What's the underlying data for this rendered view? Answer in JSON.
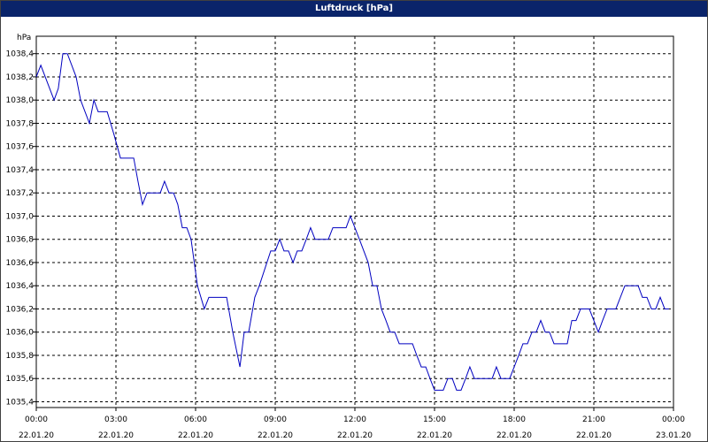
{
  "chart_data": {
    "type": "line",
    "title": "Luftdruck [hPa]",
    "y_label": "hPa",
    "xlim": [
      0,
      24
    ],
    "ylim": [
      1035.35,
      1038.55
    ],
    "xticks": [
      {
        "value": 0,
        "label": "00:00",
        "date": "22.01.20"
      },
      {
        "value": 3,
        "label": "03:00",
        "date": "22.01.20"
      },
      {
        "value": 6,
        "label": "06:00",
        "date": "22.01.20"
      },
      {
        "value": 9,
        "label": "09:00",
        "date": "22.01.20"
      },
      {
        "value": 12,
        "label": "12:00",
        "date": "22.01.20"
      },
      {
        "value": 15,
        "label": "15:00",
        "date": "22.01.20"
      },
      {
        "value": 18,
        "label": "18:00",
        "date": "22.01.20"
      },
      {
        "value": 21,
        "label": "21:00",
        "date": "22.01.20"
      },
      {
        "value": 24,
        "label": "00:00",
        "date": "23.01.20"
      }
    ],
    "yticks": [
      {
        "value": 1035.4,
        "label": "1035,4"
      },
      {
        "value": 1035.6,
        "label": "1035,6"
      },
      {
        "value": 1035.8,
        "label": "1035,8"
      },
      {
        "value": 1036.0,
        "label": "1036,0"
      },
      {
        "value": 1036.2,
        "label": "1036,2"
      },
      {
        "value": 1036.4,
        "label": "1036,4"
      },
      {
        "value": 1036.6,
        "label": "1036,6"
      },
      {
        "value": 1036.8,
        "label": "1036,8"
      },
      {
        "value": 1037.0,
        "label": "1037,0"
      },
      {
        "value": 1037.2,
        "label": "1037,2"
      },
      {
        "value": 1037.4,
        "label": "1037,4"
      },
      {
        "value": 1037.6,
        "label": "1037,6"
      },
      {
        "value": 1037.8,
        "label": "1037,8"
      },
      {
        "value": 1038.0,
        "label": "1038,0"
      },
      {
        "value": 1038.2,
        "label": "1038,2"
      },
      {
        "value": 1038.4,
        "label": "1038,4"
      }
    ],
    "grid": true,
    "series": [
      {
        "name": "Luftdruck",
        "color": "#0000c0",
        "x": [
          0,
          0.17,
          0.67,
          0.83,
          1,
          1.17,
          1.5,
          1.67,
          2,
          2.17,
          2.33,
          2.67,
          2.93,
          3.17,
          3.67,
          3.83,
          4,
          4.17,
          4.67,
          4.83,
          5,
          5.17,
          5.33,
          5.5,
          5.67,
          5.83,
          6.07,
          6.33,
          6.5,
          7.17,
          7.4,
          7.67,
          7.83,
          8,
          8.23,
          8.4,
          8.83,
          9,
          9.17,
          9.33,
          9.5,
          9.67,
          9.83,
          10,
          10.17,
          10.33,
          10.5,
          11,
          11.17,
          11.67,
          11.83,
          12,
          12.17,
          12.5,
          12.67,
          12.83,
          13,
          13.17,
          13.33,
          13.5,
          13.67,
          14.17,
          14.33,
          14.5,
          14.67,
          14.83,
          15,
          15.33,
          15.5,
          15.67,
          15.83,
          16,
          16.17,
          16.33,
          16.5,
          17.17,
          17.33,
          17.5,
          17.83,
          18,
          18.17,
          18.33,
          18.5,
          18.67,
          18.83,
          19,
          19.17,
          19.33,
          19.5,
          20,
          20.17,
          20.33,
          20.5,
          20.83,
          21,
          21.17,
          21.33,
          21.5,
          21.83,
          22,
          22.17,
          22.67,
          22.83,
          23,
          23.17,
          23.33,
          23.5,
          23.67,
          23.83
        ],
        "values": [
          1038.2,
          1038.3,
          1038.0,
          1038.1,
          1038.4,
          1038.4,
          1038.2,
          1038.0,
          1037.8,
          1038.0,
          1037.9,
          1037.9,
          1037.7,
          1037.5,
          1037.5,
          1037.3,
          1037.1,
          1037.2,
          1037.2,
          1037.3,
          1037.2,
          1037.2,
          1037.1,
          1036.9,
          1036.9,
          1036.8,
          1036.4,
          1036.2,
          1036.3,
          1036.3,
          1036.0,
          1035.7,
          1036.0,
          1036.0,
          1036.3,
          1036.4,
          1036.7,
          1036.7,
          1036.8,
          1036.7,
          1036.7,
          1036.6,
          1036.7,
          1036.7,
          1036.8,
          1036.9,
          1036.8,
          1036.8,
          1036.9,
          1036.9,
          1037.0,
          1036.9,
          1036.8,
          1036.6,
          1036.4,
          1036.4,
          1036.2,
          1036.1,
          1036.0,
          1036.0,
          1035.9,
          1035.9,
          1035.8,
          1035.7,
          1035.7,
          1035.6,
          1035.5,
          1035.5,
          1035.6,
          1035.6,
          1035.5,
          1035.5,
          1035.6,
          1035.7,
          1035.6,
          1035.6,
          1035.7,
          1035.6,
          1035.6,
          1035.7,
          1035.8,
          1035.9,
          1035.9,
          1036.0,
          1036.0,
          1036.1,
          1036.0,
          1036.0,
          1035.9,
          1035.9,
          1036.1,
          1036.1,
          1036.2,
          1036.2,
          1036.1,
          1036.0,
          1036.1,
          1036.2,
          1036.2,
          1036.3,
          1036.4,
          1036.4,
          1036.3,
          1036.3,
          1036.2,
          1036.2,
          1036.3,
          1036.2,
          1036.2
        ]
      }
    ]
  }
}
